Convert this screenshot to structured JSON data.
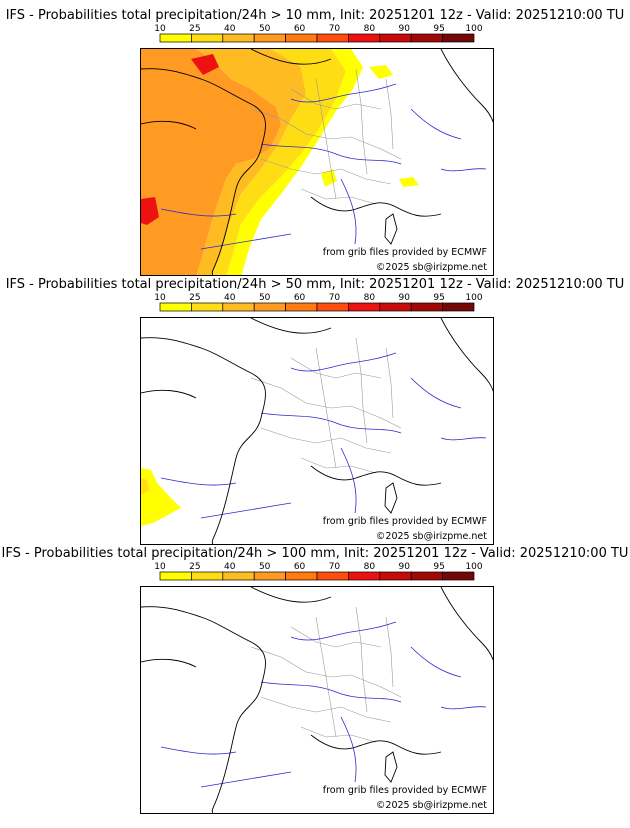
{
  "colors": {
    "scale": [
      "#ffff00",
      "#ffdd14",
      "#ffbb22",
      "#ff9a22",
      "#ff7a11",
      "#ff4d0e",
      "#ee1111",
      "#c80a0a",
      "#a10808",
      "#740808"
    ],
    "land_prob": [
      "#ff9a22",
      "#ffbb22",
      "#ffdd14",
      "#ffff00",
      "#ee1111"
    ],
    "rivers": "#2a2ad0",
    "borders": "#999999",
    "coast": "#000000"
  },
  "legend_ticks": [
    "10",
    "25",
    "40",
    "50",
    "60",
    "70",
    "80",
    "90",
    "95",
    "100"
  ],
  "panels": [
    {
      "title": "IFS - Probabilities total precipitation/24h > 10 mm, Init: 20251201 12z - Valid: 20251210:00 TU",
      "threshold_mm": 10,
      "credit_source": "from grib files provided by ECMWF",
      "credit_copyright": "©2025 sb@irizpme.net"
    },
    {
      "title": "IFS - Probabilities total precipitation/24h > 50 mm, Init: 20251201 12z - Valid: 20251210:00 TU",
      "threshold_mm": 50,
      "credit_source": "from grib files provided by ECMWF",
      "credit_copyright": "©2025 sb@irizpme.net"
    },
    {
      "title": "IFS - Probabilities total precipitation/24h > 100 mm, Init: 20251201 12z - Valid: 20251210:00 TU",
      "threshold_mm": 100,
      "credit_source": "from grib files provided by ECMWF",
      "credit_copyright": "©2025 sb@irizpme.net"
    }
  ]
}
